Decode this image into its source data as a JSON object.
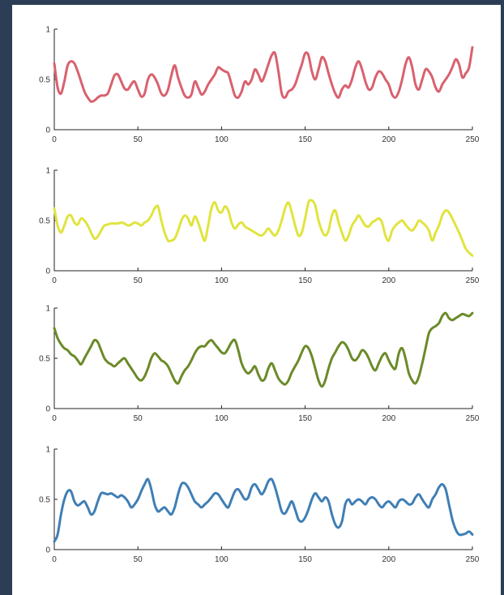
{
  "chart_data": [
    {
      "type": "line",
      "color": "#d9616e",
      "xlim": [
        0,
        250
      ],
      "ylim": [
        0,
        1
      ],
      "xticks": [
        "0",
        "50",
        "100",
        "150",
        "200",
        "250"
      ],
      "yticks": [
        "0",
        "0.5",
        "1"
      ],
      "series": [
        {
          "x": [
            0,
            2,
            4,
            6,
            8,
            10,
            12,
            14,
            16,
            18,
            20,
            22,
            24,
            26,
            28,
            30,
            32,
            34,
            36,
            38,
            40,
            42,
            44,
            46,
            48,
            50,
            52,
            54,
            56,
            58,
            60,
            62,
            64,
            66,
            68,
            70,
            72,
            74,
            76,
            78,
            80,
            82,
            84,
            86,
            88,
            90,
            92,
            94,
            96,
            98,
            100,
            102,
            104,
            106,
            108,
            110,
            112,
            114,
            116,
            118,
            120,
            122,
            124,
            126,
            128,
            130,
            132,
            134,
            136,
            138,
            140,
            142,
            144,
            146,
            148,
            150,
            152,
            154,
            156,
            158,
            160,
            162,
            164,
            166,
            168,
            170,
            172,
            174,
            176,
            178,
            180,
            182,
            184,
            186,
            188,
            190,
            192,
            194,
            196,
            198,
            200,
            202,
            204,
            206,
            208,
            210,
            212,
            214,
            216,
            218,
            220,
            222,
            224,
            226,
            228,
            230,
            232,
            234,
            236,
            238,
            240,
            242,
            244,
            246,
            248,
            250
          ],
          "y": [
            0.66,
            0.42,
            0.36,
            0.48,
            0.64,
            0.68,
            0.66,
            0.58,
            0.48,
            0.38,
            0.32,
            0.28,
            0.29,
            0.32,
            0.34,
            0.34,
            0.36,
            0.45,
            0.54,
            0.55,
            0.48,
            0.41,
            0.4,
            0.45,
            0.48,
            0.4,
            0.33,
            0.36,
            0.5,
            0.55,
            0.52,
            0.45,
            0.36,
            0.34,
            0.4,
            0.54,
            0.64,
            0.52,
            0.42,
            0.34,
            0.32,
            0.35,
            0.48,
            0.42,
            0.35,
            0.38,
            0.45,
            0.5,
            0.55,
            0.62,
            0.6,
            0.58,
            0.56,
            0.45,
            0.34,
            0.32,
            0.38,
            0.48,
            0.45,
            0.5,
            0.6,
            0.55,
            0.48,
            0.55,
            0.65,
            0.74,
            0.76,
            0.58,
            0.36,
            0.32,
            0.38,
            0.4,
            0.45,
            0.55,
            0.65,
            0.76,
            0.74,
            0.58,
            0.5,
            0.6,
            0.72,
            0.68,
            0.56,
            0.45,
            0.36,
            0.32,
            0.4,
            0.44,
            0.42,
            0.5,
            0.62,
            0.68,
            0.6,
            0.48,
            0.4,
            0.42,
            0.52,
            0.58,
            0.56,
            0.5,
            0.45,
            0.35,
            0.32,
            0.38,
            0.5,
            0.65,
            0.72,
            0.62,
            0.45,
            0.4,
            0.5,
            0.6,
            0.58,
            0.52,
            0.42,
            0.38,
            0.45,
            0.5,
            0.55,
            0.62,
            0.7,
            0.65,
            0.52,
            0.56,
            0.62,
            0.82
          ]
        }
      ]
    },
    {
      "type": "line",
      "color": "#e0e43e",
      "xlim": [
        0,
        250
      ],
      "ylim": [
        0,
        1
      ],
      "xticks": [
        "0",
        "50",
        "100",
        "150",
        "200",
        "250"
      ],
      "yticks": [
        "0",
        "0.5",
        "1"
      ],
      "series": [
        {
          "x": [
            0,
            2,
            4,
            6,
            8,
            10,
            12,
            14,
            16,
            18,
            20,
            22,
            24,
            26,
            28,
            30,
            32,
            34,
            36,
            38,
            40,
            42,
            44,
            46,
            48,
            50,
            52,
            54,
            56,
            58,
            60,
            62,
            64,
            66,
            68,
            70,
            72,
            74,
            76,
            78,
            80,
            82,
            84,
            86,
            88,
            90,
            92,
            94,
            96,
            98,
            100,
            102,
            104,
            106,
            108,
            110,
            112,
            114,
            116,
            118,
            120,
            122,
            124,
            126,
            128,
            130,
            132,
            134,
            136,
            138,
            140,
            142,
            144,
            146,
            148,
            150,
            152,
            154,
            156,
            158,
            160,
            162,
            164,
            166,
            168,
            170,
            172,
            174,
            176,
            178,
            180,
            182,
            184,
            186,
            188,
            190,
            192,
            194,
            196,
            198,
            200,
            202,
            204,
            206,
            208,
            210,
            212,
            214,
            216,
            218,
            220,
            222,
            224,
            226,
            228,
            230,
            232,
            234,
            236,
            238,
            240,
            242,
            244,
            246,
            248,
            250
          ],
          "y": [
            0.62,
            0.45,
            0.38,
            0.45,
            0.54,
            0.55,
            0.48,
            0.46,
            0.52,
            0.5,
            0.45,
            0.38,
            0.32,
            0.34,
            0.4,
            0.45,
            0.46,
            0.47,
            0.47,
            0.47,
            0.48,
            0.47,
            0.45,
            0.46,
            0.48,
            0.47,
            0.45,
            0.48,
            0.5,
            0.55,
            0.62,
            0.64,
            0.5,
            0.38,
            0.3,
            0.3,
            0.32,
            0.4,
            0.5,
            0.55,
            0.52,
            0.45,
            0.54,
            0.48,
            0.38,
            0.3,
            0.45,
            0.62,
            0.68,
            0.6,
            0.58,
            0.64,
            0.6,
            0.48,
            0.42,
            0.46,
            0.48,
            0.44,
            0.42,
            0.4,
            0.38,
            0.36,
            0.35,
            0.38,
            0.42,
            0.38,
            0.35,
            0.4,
            0.5,
            0.62,
            0.68,
            0.58,
            0.45,
            0.35,
            0.38,
            0.52,
            0.68,
            0.7,
            0.65,
            0.5,
            0.4,
            0.35,
            0.4,
            0.55,
            0.6,
            0.48,
            0.38,
            0.3,
            0.35,
            0.45,
            0.5,
            0.55,
            0.5,
            0.45,
            0.44,
            0.48,
            0.5,
            0.52,
            0.48,
            0.35,
            0.3,
            0.4,
            0.45,
            0.48,
            0.5,
            0.46,
            0.42,
            0.4,
            0.44,
            0.5,
            0.48,
            0.45,
            0.4,
            0.3,
            0.38,
            0.45,
            0.55,
            0.6,
            0.58,
            0.52,
            0.45,
            0.38,
            0.3,
            0.22,
            0.18,
            0.15
          ]
        }
      ]
    },
    {
      "type": "line",
      "color": "#6b8a28",
      "xlim": [
        0,
        250
      ],
      "ylim": [
        0,
        1
      ],
      "xticks": [
        "0",
        "50",
        "100",
        "150",
        "200",
        "250"
      ],
      "yticks": [
        "0",
        "0.5",
        "1"
      ],
      "series": [
        {
          "x": [
            0,
            2,
            4,
            6,
            8,
            10,
            12,
            14,
            16,
            18,
            20,
            22,
            24,
            26,
            28,
            30,
            32,
            34,
            36,
            38,
            40,
            42,
            44,
            46,
            48,
            50,
            52,
            54,
            56,
            58,
            60,
            62,
            64,
            66,
            68,
            70,
            72,
            74,
            76,
            78,
            80,
            82,
            84,
            86,
            88,
            90,
            92,
            94,
            96,
            98,
            100,
            102,
            104,
            106,
            108,
            110,
            112,
            114,
            116,
            118,
            120,
            122,
            124,
            126,
            128,
            130,
            132,
            134,
            136,
            138,
            140,
            142,
            144,
            146,
            148,
            150,
            152,
            154,
            156,
            158,
            160,
            162,
            164,
            166,
            168,
            170,
            172,
            174,
            176,
            178,
            180,
            182,
            184,
            186,
            188,
            190,
            192,
            194,
            196,
            198,
            200,
            202,
            204,
            206,
            208,
            210,
            212,
            214,
            216,
            218,
            220,
            222,
            224,
            226,
            228,
            230,
            232,
            234,
            236,
            238,
            240,
            242,
            244,
            246,
            248,
            250
          ],
          "y": [
            0.8,
            0.7,
            0.64,
            0.6,
            0.58,
            0.54,
            0.52,
            0.48,
            0.44,
            0.5,
            0.56,
            0.62,
            0.68,
            0.66,
            0.58,
            0.5,
            0.46,
            0.44,
            0.42,
            0.45,
            0.48,
            0.5,
            0.45,
            0.4,
            0.35,
            0.3,
            0.28,
            0.32,
            0.4,
            0.5,
            0.55,
            0.52,
            0.48,
            0.46,
            0.42,
            0.35,
            0.28,
            0.25,
            0.32,
            0.38,
            0.42,
            0.48,
            0.55,
            0.6,
            0.62,
            0.62,
            0.66,
            0.68,
            0.64,
            0.6,
            0.56,
            0.55,
            0.6,
            0.66,
            0.68,
            0.58,
            0.45,
            0.38,
            0.35,
            0.38,
            0.42,
            0.34,
            0.28,
            0.3,
            0.4,
            0.45,
            0.38,
            0.3,
            0.26,
            0.24,
            0.28,
            0.36,
            0.42,
            0.48,
            0.56,
            0.62,
            0.6,
            0.52,
            0.4,
            0.28,
            0.22,
            0.28,
            0.4,
            0.5,
            0.56,
            0.62,
            0.66,
            0.64,
            0.58,
            0.5,
            0.48,
            0.52,
            0.58,
            0.56,
            0.5,
            0.42,
            0.38,
            0.45,
            0.52,
            0.55,
            0.48,
            0.42,
            0.4,
            0.55,
            0.6,
            0.5,
            0.35,
            0.28,
            0.25,
            0.32,
            0.45,
            0.6,
            0.75,
            0.8,
            0.82,
            0.85,
            0.92,
            0.95,
            0.9,
            0.88,
            0.9,
            0.92,
            0.94,
            0.93,
            0.92,
            0.95
          ]
        }
      ]
    },
    {
      "type": "line",
      "color": "#3f7eb5",
      "xlim": [
        0,
        250
      ],
      "ylim": [
        0,
        1
      ],
      "xticks": [
        "0",
        "50",
        "100",
        "150",
        "200",
        "250"
      ],
      "yticks": [
        "0",
        "0.5",
        "1"
      ],
      "series": [
        {
          "x": [
            0,
            2,
            4,
            6,
            8,
            10,
            12,
            14,
            16,
            18,
            20,
            22,
            24,
            26,
            28,
            30,
            32,
            34,
            36,
            38,
            40,
            42,
            44,
            46,
            48,
            50,
            52,
            54,
            56,
            58,
            60,
            62,
            64,
            66,
            68,
            70,
            72,
            74,
            76,
            78,
            80,
            82,
            84,
            86,
            88,
            90,
            92,
            94,
            96,
            98,
            100,
            102,
            104,
            106,
            108,
            110,
            112,
            114,
            116,
            118,
            120,
            122,
            124,
            126,
            128,
            130,
            132,
            134,
            136,
            138,
            140,
            142,
            144,
            146,
            148,
            150,
            152,
            154,
            156,
            158,
            160,
            162,
            164,
            166,
            168,
            170,
            172,
            174,
            176,
            178,
            180,
            182,
            184,
            186,
            188,
            190,
            192,
            194,
            196,
            198,
            200,
            202,
            204,
            206,
            208,
            210,
            212,
            214,
            216,
            218,
            220,
            222,
            224,
            226,
            228,
            230,
            232,
            234,
            236,
            238,
            240,
            242,
            244,
            246,
            248,
            250
          ],
          "y": [
            0.08,
            0.15,
            0.35,
            0.5,
            0.58,
            0.58,
            0.48,
            0.44,
            0.46,
            0.48,
            0.42,
            0.35,
            0.38,
            0.48,
            0.56,
            0.56,
            0.55,
            0.56,
            0.54,
            0.52,
            0.54,
            0.52,
            0.48,
            0.42,
            0.45,
            0.5,
            0.58,
            0.65,
            0.7,
            0.6,
            0.45,
            0.38,
            0.4,
            0.42,
            0.38,
            0.35,
            0.42,
            0.55,
            0.65,
            0.66,
            0.62,
            0.55,
            0.48,
            0.45,
            0.42,
            0.45,
            0.48,
            0.52,
            0.56,
            0.55,
            0.5,
            0.45,
            0.42,
            0.5,
            0.58,
            0.6,
            0.55,
            0.5,
            0.52,
            0.62,
            0.65,
            0.6,
            0.55,
            0.6,
            0.68,
            0.7,
            0.62,
            0.5,
            0.38,
            0.36,
            0.42,
            0.48,
            0.4,
            0.3,
            0.28,
            0.32,
            0.4,
            0.5,
            0.56,
            0.52,
            0.48,
            0.52,
            0.48,
            0.35,
            0.25,
            0.22,
            0.28,
            0.45,
            0.5,
            0.45,
            0.48,
            0.5,
            0.48,
            0.45,
            0.5,
            0.52,
            0.5,
            0.45,
            0.42,
            0.46,
            0.48,
            0.45,
            0.42,
            0.48,
            0.5,
            0.48,
            0.45,
            0.46,
            0.52,
            0.55,
            0.5,
            0.45,
            0.42,
            0.5,
            0.55,
            0.62,
            0.65,
            0.6,
            0.45,
            0.3,
            0.2,
            0.15,
            0.15,
            0.16,
            0.18,
            0.15
          ]
        }
      ]
    }
  ]
}
